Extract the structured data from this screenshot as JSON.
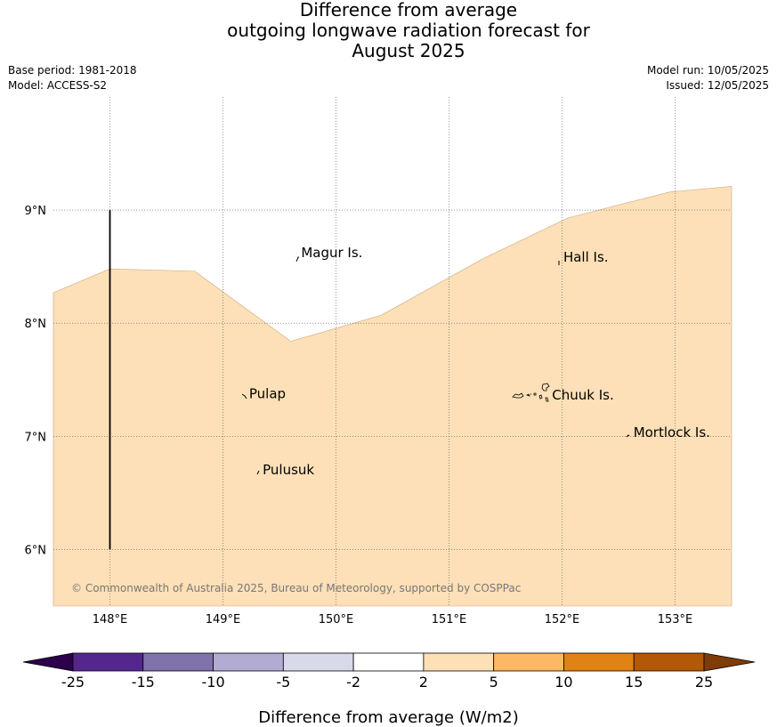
{
  "header": {
    "title_lines": [
      "Difference from average",
      "outgoing longwave radiation forecast for",
      "August 2025"
    ],
    "base_period": "Base period: 1981-2018",
    "model": "Model: ACCESS-S2",
    "model_run": "Model run: 10/05/2025",
    "issued": "Issued: 12/05/2025"
  },
  "map": {
    "lon_range": [
      147.5,
      153.5
    ],
    "lat_range": [
      5.5,
      10.0
    ],
    "lon_ticks": [
      {
        "value": 148,
        "label": "148°E"
      },
      {
        "value": 149,
        "label": "149°E"
      },
      {
        "value": 150,
        "label": "150°E"
      },
      {
        "value": 151,
        "label": "151°E"
      },
      {
        "value": 152,
        "label": "152°E"
      },
      {
        "value": 153,
        "label": "153°E"
      }
    ],
    "lat_ticks": [
      {
        "value": 9,
        "label": "9°N"
      },
      {
        "value": 8,
        "label": "8°N"
      },
      {
        "value": 7,
        "label": "7°N"
      },
      {
        "value": 6,
        "label": "6°N"
      }
    ],
    "anomaly_fill_color": "#fde0b7",
    "anomaly_boundary": [
      [
        147.5,
        8.27
      ],
      [
        148.0,
        8.48
      ],
      [
        148.75,
        8.46
      ],
      [
        149.6,
        7.84
      ],
      [
        150.4,
        8.07
      ],
      [
        151.3,
        8.57
      ],
      [
        152.05,
        8.93
      ],
      [
        152.95,
        9.16
      ],
      [
        153.5,
        9.21
      ]
    ],
    "line_segment": {
      "lon": 148.0,
      "lat_from": 6.0,
      "lat_to": 9.0
    },
    "places": [
      {
        "name": "Magur Is.",
        "lon": 149.66,
        "lat": 8.57
      },
      {
        "name": "Hall Is.",
        "lon": 151.98,
        "lat": 8.53
      },
      {
        "name": "Pulap",
        "lon": 149.2,
        "lat": 7.32
      },
      {
        "name": "Chuuk Is.",
        "lon": 151.88,
        "lat": 7.31
      },
      {
        "name": "Mortlock Is.",
        "lon": 152.6,
        "lat": 6.98
      },
      {
        "name": "Pulusuk",
        "lon": 149.32,
        "lat": 6.65
      }
    ],
    "copyright": "© Commonwealth of Australia 2025, Bureau of Meteorology, supported by COSPPac"
  },
  "colorbar": {
    "label": "Difference from average (W/m2)",
    "ticks": [
      "-25",
      "-15",
      "-10",
      "-5",
      "-2",
      "2",
      "5",
      "10",
      "15",
      "25"
    ],
    "colors": [
      "#54278f",
      "#8073ac",
      "#b2abd2",
      "#d8daeb",
      "#ffffff",
      "#fee0b6",
      "#fdb863",
      "#e08214",
      "#b35806"
    ],
    "extend_low_color": "#2d004b",
    "extend_high_color": "#7f3b08"
  }
}
